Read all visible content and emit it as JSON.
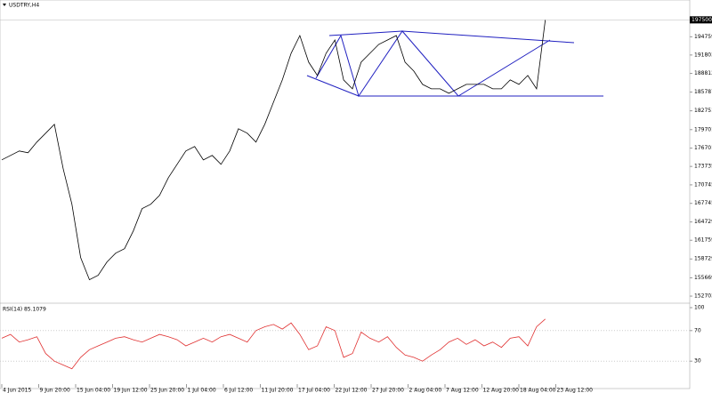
{
  "chart_data": [
    {
      "type": "line",
      "title": "USDTRY,H4",
      "color": "#000000",
      "values": [
        1748000,
        1755200,
        1762400,
        1759500,
        1776800,
        1791200,
        1805600,
        1733600,
        1676000,
        1589600,
        1553600,
        1560800,
        1582400,
        1596800,
        1604000,
        1632800,
        1668800,
        1676000,
        1690400,
        1719200,
        1740800,
        1762400,
        1769600,
        1748000,
        1755200,
        1740800,
        1762400,
        1798400,
        1791200,
        1776800,
        1805600,
        1841600,
        1877600,
        1920800,
        1949600,
        1906400,
        1884800,
        1920800,
        1942400,
        1877600,
        1863200,
        1906400,
        1920800,
        1935200,
        1942400,
        1949600,
        1906400,
        1892000,
        1870400,
        1863200,
        1863200,
        1856000,
        1863200,
        1870400,
        1870400,
        1870400,
        1863200,
        1863200,
        1877600,
        1870400,
        1884800,
        1863200,
        1975000
      ],
      "current_price": 1975000,
      "ylim": [
        1517000,
        2000000
      ],
      "yticks": [
        1947591,
        1918031,
        1888124,
        1857871,
        1827511,
        1797011,
        1767011,
        1737351,
        1707451,
        1677451,
        1647291,
        1617591,
        1587291,
        1556691,
        1527031
      ],
      "xticks": [
        "4 Jun 2015",
        "9 Jun 20:00",
        "15 Jun 04:00",
        "19 Jun 12:00",
        "25 Jun 20:00",
        "1 Jul 04:00",
        "6 Jul 12:00",
        "11 Jul 20:00",
        "17 Jul 04:00",
        "22 Jul 12:00",
        "27 Jul 20:00",
        "2 Aug 04:00",
        "7 Aug 12:00",
        "12 Aug 20:00",
        "18 Aug 04:00",
        "23 Aug 12:00"
      ]
    },
    {
      "type": "line",
      "title": "RSI(14) 85.1079",
      "color": "#e03030",
      "values": [
        60,
        65,
        55,
        58,
        62,
        40,
        30,
        25,
        20,
        35,
        45,
        50,
        55,
        60,
        62,
        58,
        55,
        60,
        65,
        62,
        58,
        50,
        55,
        60,
        55,
        62,
        65,
        60,
        55,
        70,
        75,
        78,
        72,
        80,
        65,
        45,
        50,
        75,
        70,
        35,
        40,
        68,
        60,
        55,
        62,
        48,
        38,
        35,
        30,
        38,
        45,
        55,
        60,
        52,
        58,
        50,
        55,
        48,
        60,
        62,
        50,
        75,
        85.1
      ],
      "ylim": [
        0,
        100
      ],
      "yticks": [
        100,
        70,
        30
      ],
      "levels": [
        70,
        30
      ]
    }
  ]
}
